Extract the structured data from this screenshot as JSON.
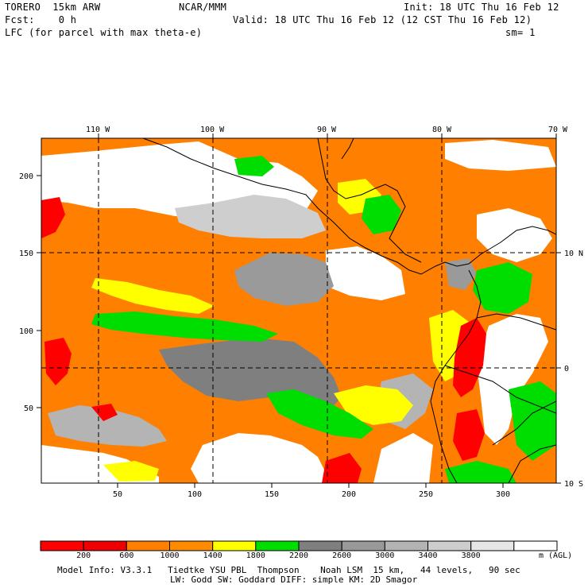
{
  "header": {
    "model": "TORERO  15km ARW",
    "org": "NCAR/MMM",
    "init": "Init: 18 UTC Thu 16 Feb 12",
    "fcst": "Fcst:    0 h",
    "valid": "Valid: 18 UTC Thu 16 Feb 12 (12 CST Thu 16 Feb 12)",
    "field": "LFC (for parcel with max theta-e)",
    "smoothing": "sm= 1"
  },
  "map": {
    "top_lon_labels": [
      "110 W",
      "100 W",
      "90 W",
      "80 W",
      "70 W"
    ],
    "right_lat_labels": [
      "10 N",
      "0",
      "10 S"
    ],
    "left_y_ticks": [
      "200",
      "150",
      "100",
      "50"
    ],
    "bottom_x_ticks": [
      "50",
      "100",
      "150",
      "200",
      "250",
      "300"
    ],
    "fill_colors": {
      "lt600": "#ff0000",
      "c600_1000": "#ff7f00",
      "c1000_1400": "#ffff00",
      "c1400_1800": "#00dd00",
      "c1800_2200": "#7f7f7f",
      "c2200_2600": "#9a9a9a",
      "c2600_3000": "#b4b4b4",
      "c3000_3400": "#cecece",
      "c3400_3800": "#e6e6e6",
      "gt3800": "#ffffff"
    }
  },
  "colorbar": {
    "colors": [
      "#ff0000",
      "#ee0000",
      "#ff7f00",
      "#ff8c00",
      "#ffff00",
      "#00dd00",
      "#7f7f7f",
      "#999999",
      "#b3b3b3",
      "#cdcdcd",
      "#e6e6e6",
      "#ffffff"
    ],
    "labels": [
      "200",
      "600",
      "1000",
      "1400",
      "1800",
      "2200",
      "2600",
      "3000",
      "3400",
      "3800"
    ],
    "units": "m (AGL)"
  },
  "footer": {
    "line1": "Model Info: V3.3.1   Tiedtke YSU PBL  Thompson    Noah LSM  15 km,   44 levels,   90 sec",
    "line2": "LW: Godd SW: Goddard DIFF: simple KM: 2D Smagor"
  }
}
